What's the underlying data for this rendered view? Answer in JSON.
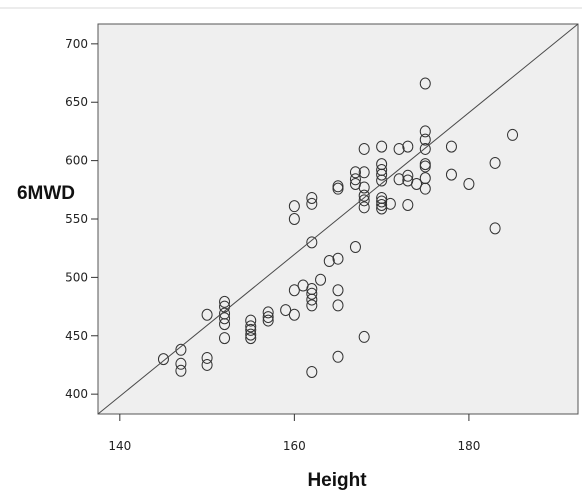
{
  "chart_data": {
    "type": "scatter",
    "title": "",
    "xlabel": "Height",
    "ylabel": "6MWD",
    "xlim": [
      137.5,
      192.5
    ],
    "ylim": [
      383,
      717
    ],
    "xticks": [
      140,
      160,
      180
    ],
    "yticks": [
      400,
      450,
      500,
      550,
      600,
      650,
      700
    ],
    "grid": false,
    "reference_line": {
      "from": [
        137.5,
        383
      ],
      "to": [
        192.5,
        717
      ]
    },
    "colors": {
      "plot_background": "#efefef",
      "marker_stroke": "#333333",
      "line": "#4a4a4a"
    },
    "points": [
      [
        145,
        430
      ],
      [
        147,
        438
      ],
      [
        147,
        426
      ],
      [
        147,
        420
      ],
      [
        150,
        468
      ],
      [
        150,
        431
      ],
      [
        150,
        425
      ],
      [
        152,
        479
      ],
      [
        152,
        475
      ],
      [
        152,
        469
      ],
      [
        152,
        465
      ],
      [
        152,
        460
      ],
      [
        152,
        448
      ],
      [
        155,
        463
      ],
      [
        155,
        458
      ],
      [
        155,
        455
      ],
      [
        155,
        451
      ],
      [
        155,
        448
      ],
      [
        157,
        470
      ],
      [
        157,
        466
      ],
      [
        157,
        463
      ],
      [
        159,
        472
      ],
      [
        160,
        561
      ],
      [
        160,
        550
      ],
      [
        160,
        489
      ],
      [
        160,
        468
      ],
      [
        161,
        493
      ],
      [
        162,
        568
      ],
      [
        162,
        563
      ],
      [
        162,
        530
      ],
      [
        162,
        490
      ],
      [
        162,
        486
      ],
      [
        162,
        481
      ],
      [
        162,
        476
      ],
      [
        162,
        419
      ],
      [
        163,
        498
      ],
      [
        164,
        514
      ],
      [
        165,
        578
      ],
      [
        165,
        576
      ],
      [
        165,
        516
      ],
      [
        165,
        489
      ],
      [
        165,
        476
      ],
      [
        165,
        432
      ],
      [
        167,
        590
      ],
      [
        167,
        584
      ],
      [
        167,
        580
      ],
      [
        167,
        526
      ],
      [
        168,
        610
      ],
      [
        168,
        590
      ],
      [
        168,
        577
      ],
      [
        168,
        570
      ],
      [
        168,
        566
      ],
      [
        168,
        560
      ],
      [
        168,
        449
      ],
      [
        170,
        612
      ],
      [
        170,
        597
      ],
      [
        170,
        592
      ],
      [
        170,
        588
      ],
      [
        170,
        583
      ],
      [
        170,
        568
      ],
      [
        170,
        565
      ],
      [
        170,
        562
      ],
      [
        170,
        559
      ],
      [
        171,
        563
      ],
      [
        172,
        610
      ],
      [
        172,
        584
      ],
      [
        173,
        612
      ],
      [
        173,
        587
      ],
      [
        173,
        583
      ],
      [
        173,
        562
      ],
      [
        174,
        580
      ],
      [
        175,
        666
      ],
      [
        175,
        625
      ],
      [
        175,
        618
      ],
      [
        175,
        610
      ],
      [
        175,
        597
      ],
      [
        175,
        595
      ],
      [
        175,
        585
      ],
      [
        175,
        576
      ],
      [
        178,
        612
      ],
      [
        178,
        588
      ],
      [
        180,
        580
      ],
      [
        183,
        598
      ],
      [
        183,
        542
      ],
      [
        185,
        622
      ]
    ]
  }
}
